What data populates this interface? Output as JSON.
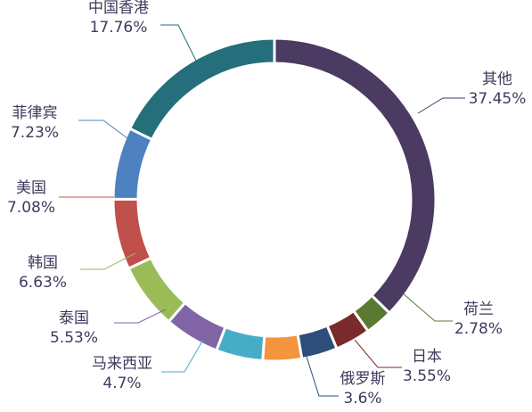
{
  "chart_data": {
    "type": "pie",
    "variant": "donut",
    "title": "",
    "legend": "none",
    "slices": [
      {
        "name": "其他",
        "value": 37.45,
        "value_label": "37.45%",
        "color": "#4b3a61"
      },
      {
        "name": "荷兰",
        "value": 2.78,
        "value_label": "2.78%",
        "color": "#5a7a31"
      },
      {
        "name": "日本",
        "value": 3.55,
        "value_label": "3.55%",
        "color": "#7a2a2b"
      },
      {
        "name": "俄罗斯",
        "value": 3.6,
        "value_label": "3.6%",
        "color": "#2c4e78"
      },
      {
        "name": "",
        "value": 3.9,
        "value_label": "",
        "color": "#f4943f"
      },
      {
        "name": "马来西亚",
        "value": 4.7,
        "value_label": "4.7%",
        "color": "#45aec6"
      },
      {
        "name": "泰国",
        "value": 5.53,
        "value_label": "5.53%",
        "color": "#8064a6"
      },
      {
        "name": "韩国",
        "value": 6.63,
        "value_label": "6.63%",
        "color": "#9bbb57"
      },
      {
        "name": "美国",
        "value": 7.08,
        "value_label": "7.08%",
        "color": "#c14f4c"
      },
      {
        "name": "菲律宾",
        "value": 7.23,
        "value_label": "7.23%",
        "color": "#4d81bf"
      },
      {
        "name": "中国香港",
        "value": 17.76,
        "value_label": "17.76%",
        "color": "#256e7c"
      }
    ]
  }
}
